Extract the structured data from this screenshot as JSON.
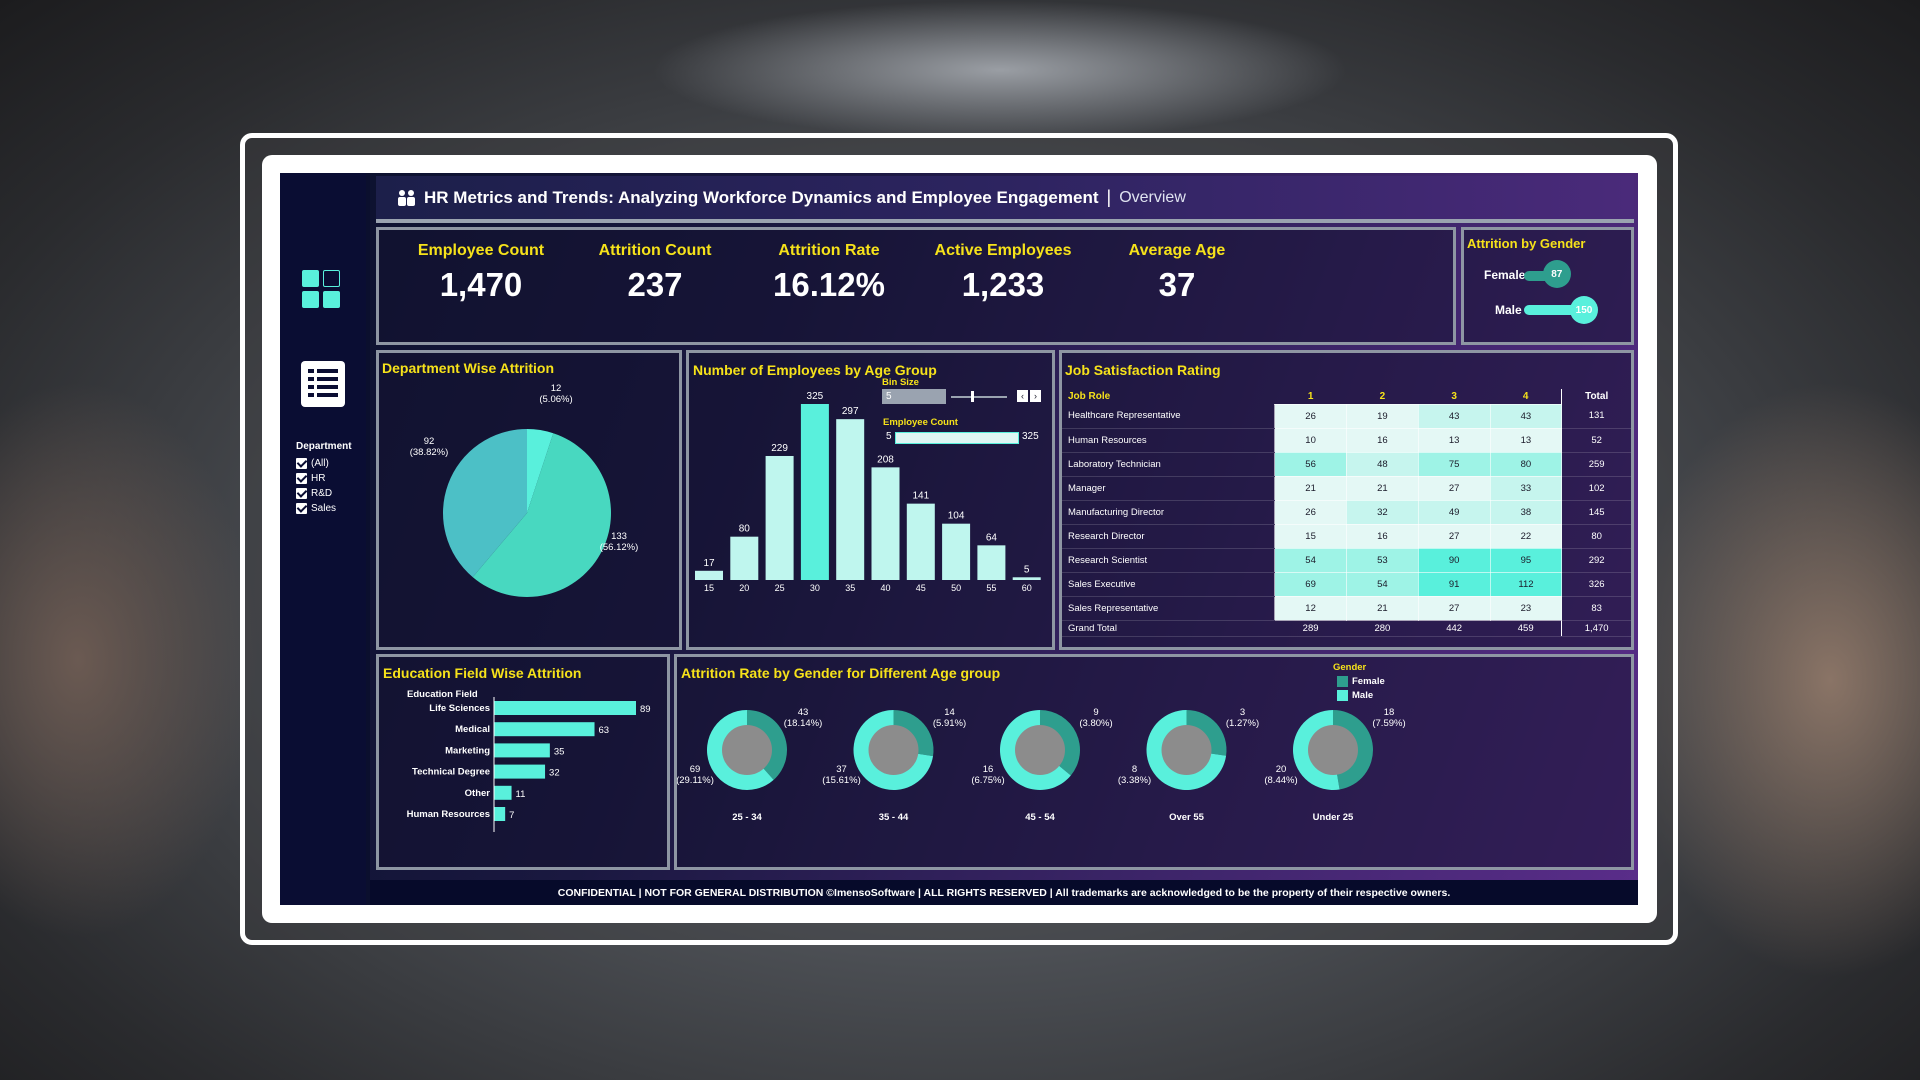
{
  "header": {
    "title": "HR Metrics and Trends: Analyzing Workforce Dynamics and Employee Engagement",
    "separator": "|",
    "subtitle": "Overview"
  },
  "sidebar": {
    "filter_title": "Department",
    "options": [
      "(All)",
      "HR",
      "R&D",
      "Sales"
    ]
  },
  "kpis": [
    {
      "label": "Employee Count",
      "value": "1,470"
    },
    {
      "label": "Attrition Count",
      "value": "237"
    },
    {
      "label": "Attrition Rate",
      "value": "16.12%"
    },
    {
      "label": "Active Employees",
      "value": "1,233"
    },
    {
      "label": "Average Age",
      "value": "37"
    }
  ],
  "gender_attrition": {
    "title": "Attrition by Gender",
    "female_label": "Female",
    "female_value": "87",
    "male_label": "Male",
    "male_value": "150",
    "female_num": 87,
    "male_num": 150
  },
  "dept": {
    "title": "Department Wise Attrition",
    "labels": [
      "12",
      "(5.06%)",
      "92",
      "(38.82%)",
      "133",
      "(56.12%)"
    ]
  },
  "age_group": {
    "title": "Number of Employees by Age Group",
    "bin_label": "Bin Size",
    "bin_value": "5",
    "count_label": "Employee Count",
    "count_min": "5",
    "count_max": "325"
  },
  "job": {
    "title": "Job Satisfaction Rating",
    "headers": [
      "Job Role",
      "1",
      "2",
      "3",
      "4",
      "Total"
    ],
    "rows": [
      [
        "Healthcare Representative",
        "26",
        "19",
        "43",
        "43",
        "131"
      ],
      [
        "Human Resources",
        "10",
        "16",
        "13",
        "13",
        "52"
      ],
      [
        "Laboratory Technician",
        "56",
        "48",
        "75",
        "80",
        "259"
      ],
      [
        "Manager",
        "21",
        "21",
        "27",
        "33",
        "102"
      ],
      [
        "Manufacturing Director",
        "26",
        "32",
        "49",
        "38",
        "145"
      ],
      [
        "Research Director",
        "15",
        "16",
        "27",
        "22",
        "80"
      ],
      [
        "Research Scientist",
        "54",
        "53",
        "90",
        "95",
        "292"
      ],
      [
        "Sales Executive",
        "69",
        "54",
        "91",
        "112",
        "326"
      ],
      [
        "Sales Representative",
        "12",
        "21",
        "27",
        "23",
        "83"
      ],
      [
        "Grand Total",
        "289",
        "280",
        "442",
        "459",
        "1,470"
      ]
    ]
  },
  "edu": {
    "title": "Education Field Wise Attrition",
    "axis_label": "Education Field"
  },
  "rate": {
    "title": "Attrition Rate by Gender for Different Age group",
    "legend_title": "Gender",
    "legend": [
      "Female",
      "Male"
    ]
  },
  "footer": "CONFIDENTIAL | NOT FOR GENERAL DISTRIBUTION ©ImensoSoftware | ALL RIGHTS RESERVED | All trademarks are acknowledged to be the property of their respective owners.",
  "colors": {
    "accent": "#59f0dc",
    "female": "#2e9e8e",
    "male": "#59f0dc",
    "title": "#f6e21a"
  },
  "chart_data": [
    {
      "type": "pie",
      "title": "Department Wise Attrition",
      "slices": [
        {
          "value": 12,
          "label": "(5.06%)"
        },
        {
          "value": 92,
          "label": "(38.82%)"
        },
        {
          "value": 133,
          "label": "(56.12%)"
        }
      ]
    },
    {
      "type": "bar",
      "title": "Number of Employees by Age Group",
      "categories": [
        "15",
        "20",
        "25",
        "30",
        "35",
        "40",
        "45",
        "50",
        "55",
        "60"
      ],
      "values": [
        17,
        80,
        229,
        325,
        297,
        208,
        141,
        104,
        64,
        5
      ],
      "ylim": [
        0,
        325
      ]
    },
    {
      "type": "bar",
      "title": "Education Field Wise Attrition",
      "orientation": "horizontal",
      "categories": [
        "Life Sciences",
        "Medical",
        "Marketing",
        "Technical Degree",
        "Other",
        "Human Resources"
      ],
      "values": [
        89,
        63,
        35,
        32,
        11,
        7
      ]
    },
    {
      "type": "pie",
      "title": "Attrition Rate by Gender for Different Age group",
      "groups": [
        {
          "name": "25 - 34",
          "female": 43,
          "female_pct": "(18.14%)",
          "male": 69,
          "male_pct": "(29.11%)"
        },
        {
          "name": "35 - 44",
          "female": 14,
          "female_pct": "(5.91%)",
          "male": 37,
          "male_pct": "(15.61%)"
        },
        {
          "name": "45 - 54",
          "female": 9,
          "female_pct": "(3.80%)",
          "male": 16,
          "male_pct": "(6.75%)"
        },
        {
          "name": "Over 55",
          "female": 3,
          "female_pct": "(1.27%)",
          "male": 8,
          "male_pct": "(3.38%)"
        },
        {
          "name": "Under 25",
          "female": 18,
          "female_pct": "(7.59%)",
          "male": 20,
          "male_pct": "(8.44%)"
        }
      ]
    }
  ]
}
